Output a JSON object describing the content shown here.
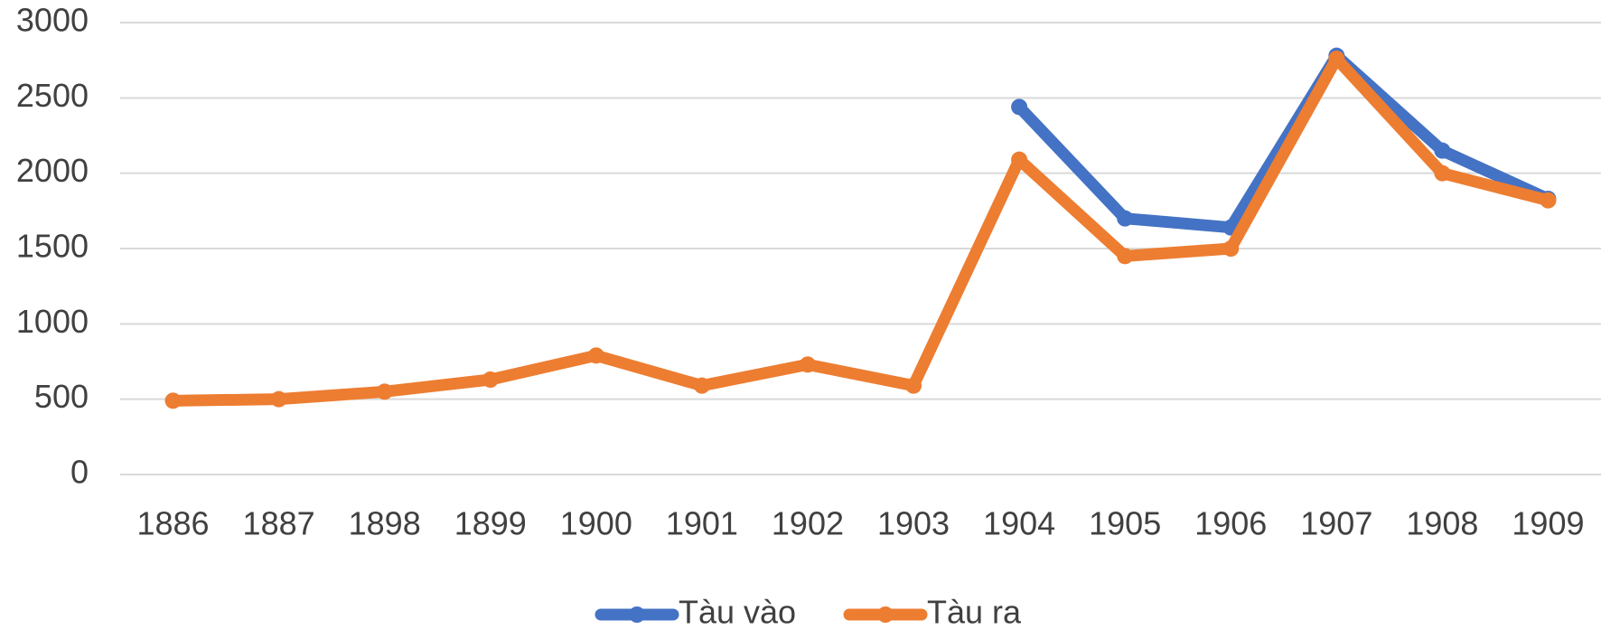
{
  "chart_data": {
    "type": "line",
    "categories": [
      "1886",
      "1887",
      "1898",
      "1899",
      "1900",
      "1901",
      "1902",
      "1903",
      "1904",
      "1905",
      "1906",
      "1907",
      "1908",
      "1909"
    ],
    "series": [
      {
        "name": "Tàu vào",
        "color": "#4472c4",
        "values": [
          null,
          null,
          null,
          null,
          null,
          null,
          null,
          null,
          2440,
          1700,
          1640,
          2780,
          2150,
          1830
        ]
      },
      {
        "name": "Tàu ra",
        "color": "#ed7d31",
        "values": [
          490,
          500,
          550,
          630,
          790,
          590,
          730,
          590,
          2090,
          1450,
          1500,
          2760,
          2000,
          1820
        ]
      }
    ],
    "ylim": [
      0,
      3000
    ],
    "yticks": [
      0,
      500,
      1000,
      1500,
      2000,
      2500,
      3000
    ],
    "grid": true,
    "legend": "bottom"
  }
}
